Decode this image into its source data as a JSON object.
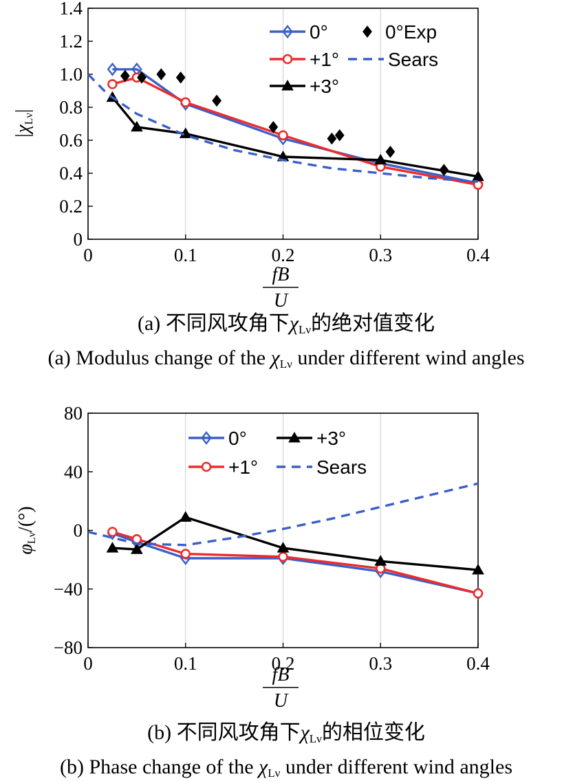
{
  "panels": [
    {
      "chart_data": {
        "type": "line",
        "xlabel": "fB/U",
        "ylabel": "|χLν|",
        "xlim": [
          0,
          0.4
        ],
        "ylim": [
          0,
          1.4
        ],
        "xticks": [
          0,
          0.1,
          0.2,
          0.3,
          0.4
        ],
        "xtick_labels": [
          "0",
          "0.1",
          "0.2",
          "0.3",
          "0.4"
        ],
        "yticks": [
          0,
          0.2,
          0.4,
          0.6,
          0.8,
          1.0,
          1.2,
          1.4
        ],
        "ytick_labels": [
          "0",
          "0.2",
          "0.4",
          "0.6",
          "0.8",
          "1.0",
          "1.2",
          "1.4"
        ],
        "grid": "vertical",
        "legend_position": "top-right",
        "series": [
          {
            "name": "0°",
            "style": "solid",
            "marker": "diamond-open",
            "color": "#3a5fc8",
            "x": [
              0.025,
              0.05,
              0.1,
              0.2,
              0.3,
              0.4
            ],
            "y": [
              1.03,
              1.03,
              0.82,
              0.61,
              0.46,
              0.34
            ]
          },
          {
            "name": "+1°",
            "style": "solid",
            "marker": "circle-open",
            "color": "#ee2b2b",
            "x": [
              0.025,
              0.05,
              0.1,
              0.2,
              0.3,
              0.4
            ],
            "y": [
              0.94,
              0.98,
              0.83,
              0.63,
              0.44,
              0.33
            ]
          },
          {
            "name": "+3°",
            "style": "solid",
            "marker": "triangle-filled",
            "color": "#000000",
            "x": [
              0.025,
              0.05,
              0.1,
              0.2,
              0.3,
              0.4
            ],
            "y": [
              0.86,
              0.68,
              0.64,
              0.5,
              0.48,
              0.38
            ]
          },
          {
            "name": "0°Exp",
            "style": "none",
            "marker": "diamond-filled",
            "color": "#000000",
            "x": [
              0.038,
              0.055,
              0.075,
              0.095,
              0.132,
              0.19,
              0.25,
              0.258,
              0.31,
              0.365
            ],
            "y": [
              0.99,
              0.98,
              1.0,
              0.98,
              0.84,
              0.68,
              0.61,
              0.63,
              0.53,
              0.42
            ]
          },
          {
            "name": "Sears",
            "style": "dashed",
            "marker": "none",
            "color": "#3a5fc8",
            "x": [
              0,
              0.02,
              0.05,
              0.1,
              0.15,
              0.2,
              0.25,
              0.3,
              0.35,
              0.4
            ],
            "y": [
              1.0,
              0.88,
              0.76,
              0.63,
              0.54,
              0.48,
              0.43,
              0.4,
              0.37,
              0.35
            ]
          }
        ],
        "legend": {
          "columns": [
            [
              "0°",
              "+1°",
              "+3°"
            ],
            [
              "0°Exp",
              "Sears"
            ]
          ]
        }
      },
      "caption_cn": "(a) 不同风攻角下χLν的绝对值变化",
      "caption_en": "(a) Modulus change of the χLν under different wind angles"
    },
    {
      "chart_data": {
        "type": "line",
        "xlabel": "fB/U",
        "ylabel": "φLν/(°)",
        "xlim": [
          0,
          0.4
        ],
        "ylim": [
          -80,
          80
        ],
        "xticks": [
          0,
          0.1,
          0.2,
          0.3,
          0.4
        ],
        "xtick_labels": [
          "0",
          "0.1",
          "0.2",
          "0.3",
          "0.4"
        ],
        "yticks": [
          -80,
          -40,
          0,
          40,
          80
        ],
        "ytick_labels": [
          "−80",
          "−40",
          "0",
          "40",
          "80"
        ],
        "grid": "vertical",
        "legend_position": "top-center",
        "series": [
          {
            "name": "0°",
            "style": "solid",
            "marker": "diamond-open",
            "color": "#3a5fc8",
            "x": [
              0.025,
              0.05,
              0.1,
              0.2,
              0.3,
              0.4
            ],
            "y": [
              -2,
              -8,
              -19,
              -19,
              -28,
              -43
            ]
          },
          {
            "name": "+1°",
            "style": "solid",
            "marker": "circle-open",
            "color": "#ee2b2b",
            "x": [
              0.025,
              0.05,
              0.1,
              0.2,
              0.3,
              0.4
            ],
            "y": [
              -1,
              -6,
              -16,
              -18,
              -26,
              -43
            ]
          },
          {
            "name": "+3°",
            "style": "solid",
            "marker": "triangle-filled",
            "color": "#000000",
            "x": [
              0.025,
              0.05,
              0.1,
              0.2,
              0.3,
              0.4
            ],
            "y": [
              -12,
              -13,
              9,
              -12,
              -21,
              -27
            ]
          },
          {
            "name": "Sears",
            "style": "dashed",
            "marker": "none",
            "color": "#3a5fc8",
            "x": [
              0,
              0.05,
              0.1,
              0.15,
              0.2,
              0.25,
              0.3,
              0.35,
              0.4
            ],
            "y": [
              -1,
              -9,
              -10,
              -5,
              1,
              8,
              16,
              24,
              32
            ]
          }
        ],
        "legend": {
          "columns": [
            [
              "0°",
              "+1°"
            ],
            [
              "+3°",
              "Sears"
            ]
          ]
        }
      },
      "caption_cn": "(b) 不同风攻角下χLν的相位变化",
      "caption_en": "(b) Phase change of the χLν under different wind angles"
    }
  ]
}
